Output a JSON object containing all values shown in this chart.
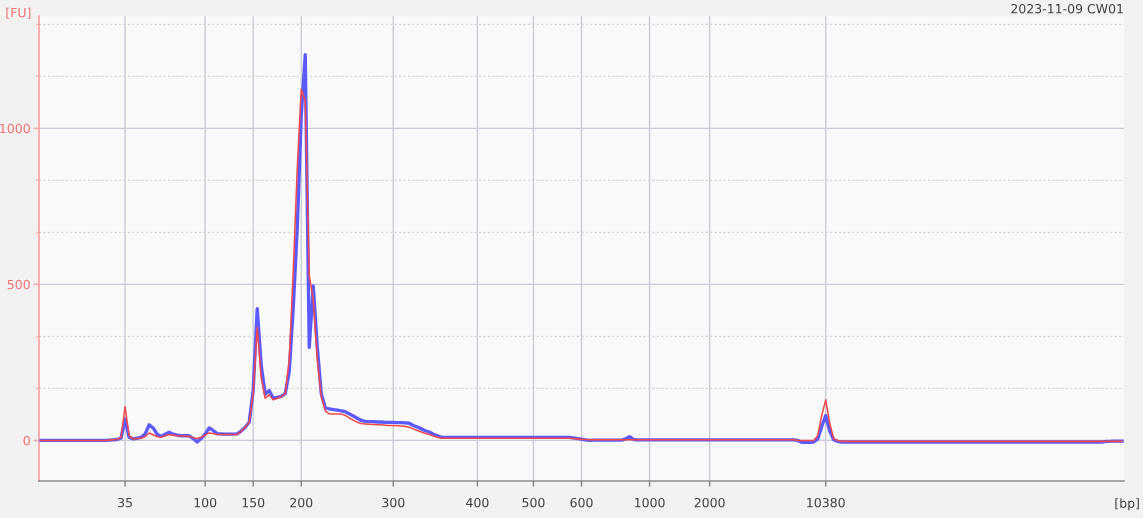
{
  "chart_data": {
    "type": "line",
    "title": "2023-11-09 CW01",
    "xlabel": "[bp]",
    "ylabel": "[FU]",
    "categories": [
      null,
      null,
      null,
      null,
      null,
      null,
      null,
      null,
      null,
      null,
      null,
      null,
      null,
      null,
      null,
      null,
      null,
      null,
      null,
      null,
      null,
      "35",
      null,
      null,
      null,
      null,
      null,
      null,
      null,
      null,
      null,
      null,
      null,
      null,
      null,
      null,
      null,
      null,
      null,
      null,
      null,
      "100",
      null,
      null,
      null,
      null,
      null,
      null,
      null,
      null,
      null,
      null,
      null,
      "150",
      null,
      null,
      null,
      null,
      null,
      null,
      null,
      null,
      null,
      null,
      null,
      "200",
      null,
      null,
      null,
      null,
      null,
      null,
      null,
      null,
      null,
      null,
      null,
      null,
      null,
      null,
      null,
      null,
      null,
      null,
      null,
      null,
      null,
      null,
      "300",
      null,
      null,
      null,
      null,
      null,
      null,
      null,
      null,
      null,
      null,
      null,
      null,
      null,
      null,
      null,
      null,
      null,
      null,
      null,
      null,
      "400",
      null,
      null,
      null,
      null,
      null,
      null,
      null,
      null,
      null,
      null,
      null,
      null,
      null,
      "500",
      null,
      null,
      null,
      null,
      null,
      null,
      null,
      null,
      null,
      null,
      null,
      "600",
      null,
      null,
      null,
      null,
      null,
      null,
      null,
      null,
      null,
      null,
      null,
      null,
      null,
      null,
      null,
      null,
      "1000",
      null,
      null,
      null,
      null,
      null,
      null,
      null,
      null,
      null,
      null,
      null,
      null,
      null,
      null,
      "2000",
      null,
      null,
      null,
      null,
      null,
      null,
      null,
      null,
      null,
      null,
      null,
      null,
      null,
      null,
      null,
      null,
      null,
      null,
      null,
      null,
      null,
      null,
      null,
      null,
      null,
      null,
      null,
      null,
      "10380",
      null,
      null,
      null,
      null,
      null,
      null,
      null,
      null,
      null,
      null,
      null,
      null,
      null,
      null,
      null,
      null,
      null,
      null,
      null,
      null,
      null,
      null,
      null,
      null,
      null,
      null,
      null,
      null,
      null,
      null,
      null,
      null,
      null,
      null,
      null,
      null,
      null,
      null,
      null,
      null,
      null,
      null,
      null,
      null,
      null,
      null,
      null,
      null,
      null,
      null,
      null,
      null,
      null,
      null,
      null,
      null,
      null,
      null,
      null,
      null,
      null,
      null,
      null,
      null,
      null,
      null,
      null,
      null,
      null,
      null,
      null,
      null,
      null,
      null
    ],
    "ylim": [
      -130,
      1360
    ],
    "yticks": [
      0,
      {
        "value": 166.7,
        "label": null
      },
      {
        "value": 333.3,
        "label": null
      },
      500,
      {
        "value": 666.7,
        "label": null
      },
      {
        "value": 833.3,
        "label": null
      },
      1000,
      {
        "value": 1166.7,
        "label": null
      },
      {
        "value": 1333.3,
        "label": null
      }
    ],
    "grid": true,
    "marker": "none",
    "line_style": "solid",
    "series": [
      {
        "color": "#5a5aff",
        "values": [
          0,
          0,
          0,
          0,
          0,
          0,
          0,
          0,
          0,
          0,
          0,
          0,
          0,
          0,
          0,
          0,
          0,
          1,
          2,
          3,
          8,
          68,
          10,
          5,
          7,
          10,
          20,
          50,
          40,
          20,
          13,
          20,
          26,
          20,
          17,
          15,
          15,
          15,
          6,
          -5,
          6,
          20,
          40,
          32,
          22,
          21,
          20,
          20,
          20,
          21,
          30,
          42,
          58,
          160,
          422,
          240,
          148,
          160,
          135,
          138,
          141,
          150,
          220,
          425,
          680,
          1040,
          1236,
          298,
          495,
          300,
          150,
          106,
          101,
          99,
          97,
          95,
          92,
          85,
          78,
          71,
          64,
          61,
          60,
          60,
          59,
          59,
          58,
          58,
          58,
          57,
          57,
          56,
          55,
          48,
          43,
          37,
          31,
          27,
          20,
          15,
          10,
          10,
          10,
          10,
          10,
          10,
          10,
          10,
          10,
          10,
          10,
          10,
          10,
          10,
          10,
          10,
          10,
          10,
          10,
          10,
          10,
          10,
          10,
          10,
          10,
          10,
          10,
          10,
          10,
          10,
          10,
          10,
          10,
          8,
          6,
          4,
          2,
          0,
          1,
          1,
          1,
          1,
          1,
          1,
          1,
          1,
          5,
          12,
          3,
          2,
          2,
          2,
          2,
          2,
          2,
          2,
          2,
          2,
          2,
          2,
          2,
          2,
          2,
          2,
          2,
          2,
          2,
          2,
          2,
          2,
          2,
          2,
          2,
          2,
          2,
          2,
          2,
          2,
          2,
          2,
          2,
          2,
          2,
          2,
          2,
          2,
          2,
          2,
          2,
          0,
          -6,
          -6,
          -6,
          -5,
          5,
          45,
          80,
          30,
          2,
          -3,
          -5,
          -5,
          -5,
          -5,
          -5,
          -5,
          -5,
          -5,
          -5,
          -5,
          -5,
          -5,
          -5,
          -5,
          -5,
          -5,
          -5,
          -5,
          -5,
          -5,
          -5,
          -5,
          -5,
          -5,
          -5,
          -5,
          -5,
          -5,
          -5,
          -5,
          -5,
          -5,
          -5,
          -5,
          -5,
          -5,
          -5,
          -5,
          -5,
          -5,
          -5,
          -5,
          -5,
          -5,
          -5,
          -5,
          -5,
          -5,
          -5,
          -5,
          -5,
          -5,
          -5,
          -5,
          -5,
          -5,
          -5,
          -5,
          -5,
          -5,
          -5,
          -5,
          -5,
          -5,
          -5,
          -5,
          -3,
          -3,
          -2,
          -2,
          -2
        ]
      },
      {
        "color": "#f04848",
        "values": [
          0,
          0,
          0,
          0,
          0,
          0,
          0,
          0,
          0,
          0,
          0,
          0,
          0,
          0,
          0,
          0,
          0,
          1,
          2,
          3,
          10,
          108,
          15,
          5,
          6,
          7,
          12,
          24,
          18,
          12,
          10,
          14,
          19,
          17,
          15,
          14,
          14,
          13,
          9,
          6,
          10,
          17,
          24,
          22,
          19,
          19,
          19,
          19,
          19,
          19,
          30,
          42,
          58,
          150,
          362,
          200,
          135,
          146,
          130,
          135,
          140,
          150,
          260,
          540,
          870,
          1125,
          1088,
          529,
          450,
          260,
          140,
          95,
          85,
          85,
          85,
          85,
          80,
          72,
          65,
          58,
          54,
          53,
          52,
          51,
          50,
          50,
          49,
          48,
          48,
          47,
          46,
          45,
          42,
          37,
          32,
          27,
          22,
          19,
          14,
          10,
          7,
          7,
          7,
          7,
          7,
          7,
          7,
          7,
          7,
          7,
          7,
          7,
          7,
          7,
          7,
          7,
          7,
          7,
          7,
          7,
          7,
          7,
          7,
          7,
          7,
          7,
          7,
          7,
          7,
          7,
          7,
          7,
          7,
          6,
          5,
          4,
          3,
          2,
          2,
          2,
          2,
          2,
          2,
          2,
          2,
          2,
          2,
          2,
          2,
          2,
          2,
          2,
          2,
          2,
          2,
          2,
          2,
          2,
          2,
          2,
          2,
          2,
          2,
          2,
          2,
          2,
          2,
          2,
          2,
          2,
          2,
          2,
          2,
          2,
          2,
          2,
          2,
          2,
          2,
          2,
          2,
          2,
          2,
          2,
          2,
          2,
          2,
          2,
          2,
          0,
          0,
          0,
          0,
          0,
          15,
          80,
          130,
          55,
          5,
          0,
          -3,
          -3,
          -3,
          -3,
          -3,
          -3,
          -3,
          -3,
          -3,
          -3,
          -3,
          -3,
          -3,
          -3,
          -3,
          -3,
          -3,
          -3,
          -3,
          -3,
          -3,
          -3,
          -3,
          -3,
          -3,
          -3,
          -3,
          -3,
          -3,
          -3,
          -3,
          -3,
          -3,
          -3,
          -3,
          -3,
          -3,
          -3,
          -3,
          -3,
          -3,
          -3,
          -3,
          -3,
          -3,
          -3,
          -3,
          -3,
          -3,
          -3,
          -3,
          -3,
          -3,
          -3,
          -3,
          -3,
          -3,
          -3,
          -3,
          -3,
          -3,
          -3,
          -3,
          -3,
          -3,
          -3,
          -3,
          -3,
          -3,
          -3,
          -3
        ]
      }
    ]
  }
}
